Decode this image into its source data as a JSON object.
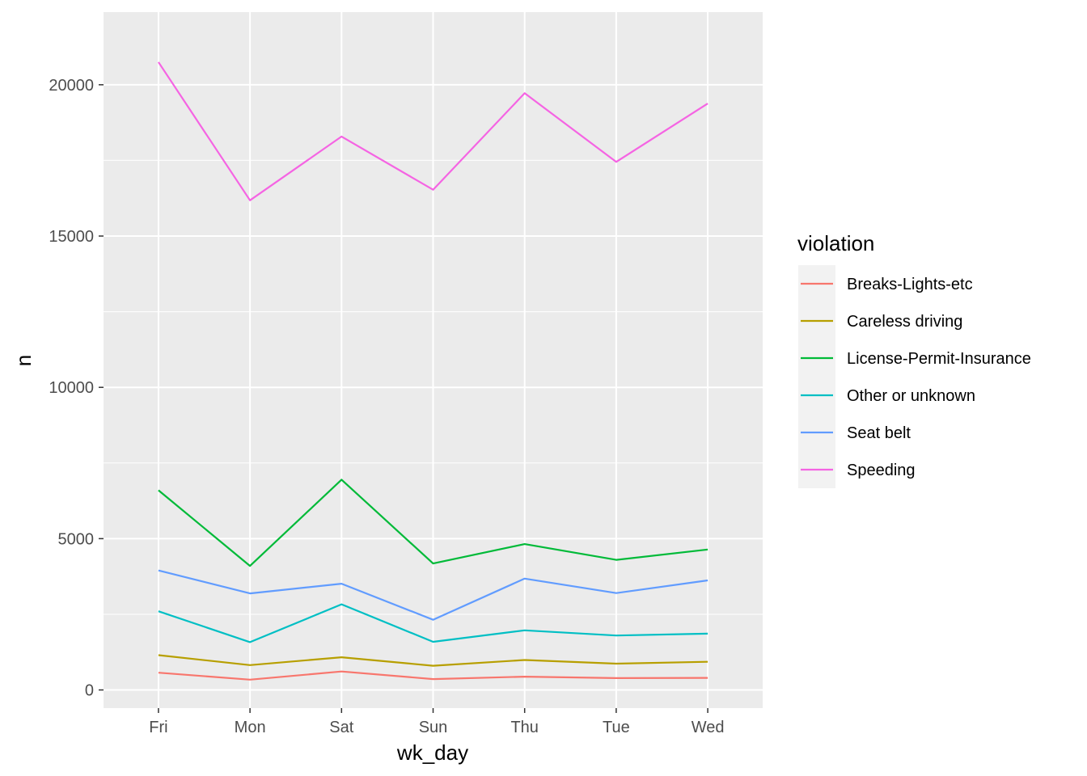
{
  "chart_data": {
    "type": "line",
    "xlabel": "wk_day",
    "ylabel": "n",
    "categories": [
      "Fri",
      "Mon",
      "Sat",
      "Sun",
      "Thu",
      "Tue",
      "Wed"
    ],
    "ylim": [
      -600,
      22400
    ],
    "yticks": [
      0,
      5000,
      10000,
      15000,
      20000
    ],
    "grid": true,
    "legend": {
      "title": "violation",
      "placement": "right"
    },
    "series": [
      {
        "name": "Breaks-Lights-etc",
        "color": "#F8766D",
        "values": [
          570,
          340,
          610,
          360,
          440,
          390,
          400
        ]
      },
      {
        "name": "Careless driving",
        "color": "#B79F00",
        "values": [
          1150,
          820,
          1080,
          800,
          990,
          870,
          930
        ]
      },
      {
        "name": "License-Permit-Insurance",
        "color": "#00BA38",
        "values": [
          6600,
          4100,
          6950,
          4180,
          4820,
          4300,
          4640
        ]
      },
      {
        "name": "Other or unknown",
        "color": "#00BFC4",
        "values": [
          2600,
          1580,
          2830,
          1590,
          1970,
          1800,
          1860
        ]
      },
      {
        "name": "Seat belt",
        "color": "#619CFF",
        "values": [
          3950,
          3190,
          3510,
          2320,
          3680,
          3200,
          3620
        ]
      },
      {
        "name": "Speeding",
        "color": "#F564E3",
        "values": [
          20750,
          16180,
          18290,
          16530,
          19720,
          17450,
          19380
        ]
      }
    ]
  }
}
